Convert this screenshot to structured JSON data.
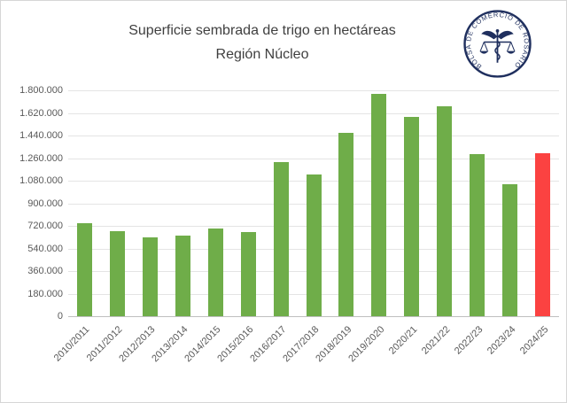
{
  "title": {
    "line1": "Superficie sembrada de trigo en hectáreas",
    "line2": "Región Núcleo"
  },
  "logo": {
    "ring_text": "BOLSA DE COMERCIO DE ROSARIO",
    "color": "#1F2F5E"
  },
  "chart_data": {
    "type": "bar",
    "title": "Superficie sembrada de trigo en hectáreas",
    "subtitle": "Región Núcleo",
    "unit": "hectáreas",
    "categories": [
      "2010/2011",
      "2011/2012",
      "2012/2013",
      "2013/2014",
      "2014/2015",
      "2015/2016",
      "2016/2017",
      "2017/2018",
      "2018/2019",
      "2019/2020",
      "2020/21",
      "2021/22",
      "2022/23",
      "2023/24",
      "2024/25"
    ],
    "values": [
      740000,
      680000,
      630000,
      640000,
      700000,
      670000,
      1230000,
      1130000,
      1460000,
      1770000,
      1590000,
      1670000,
      1290000,
      1050000,
      1300000
    ],
    "ylim": [
      0,
      1800000
    ],
    "ytick_interval": 180000,
    "ytick_labels": [
      "1.800.000",
      "1.620.000",
      "1.440.000",
      "1.260.000",
      "1.080.000",
      "900.000",
      "720.000",
      "540.000",
      "360.000",
      "180.000",
      "0"
    ],
    "grid": true,
    "legend": null,
    "bar_color": "#6FAD49",
    "highlight_color": "#FB4241",
    "highlight_index": 14
  }
}
